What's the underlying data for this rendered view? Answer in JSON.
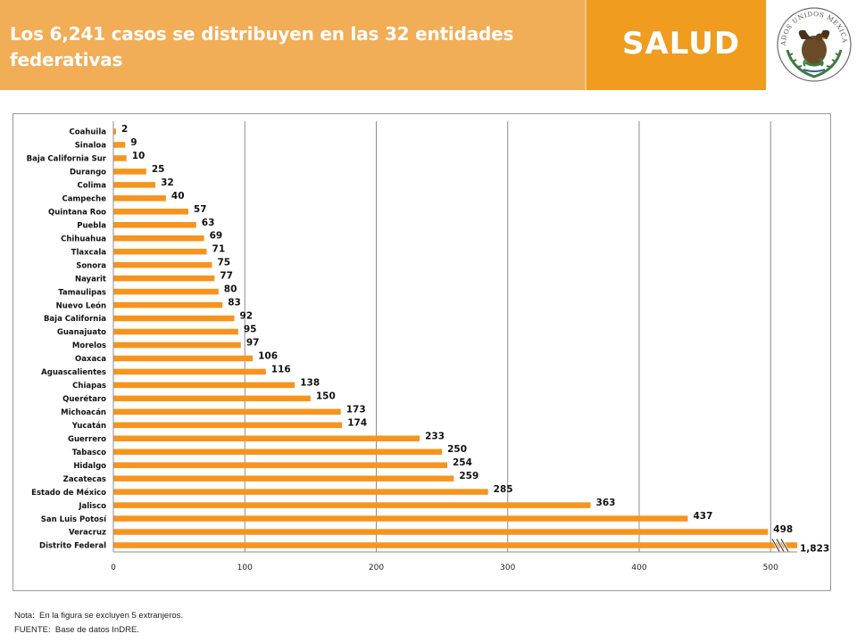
{
  "header": {
    "title": "Los 6,241 casos se distribuyen en las 32 entidades federativas",
    "brand": "SALUD",
    "seal_icon": "mexican-coat-of-arms-seal",
    "seal_text": "ESTADOS UNIDOS MEXICANOS",
    "colors": {
      "title_band": "#f2ad57",
      "brand_band": "#f09c1f"
    }
  },
  "chart_data": {
    "type": "bar",
    "orientation": "horizontal",
    "categories": [
      "Coahuila",
      "Sinaloa",
      "Baja California Sur",
      "Durango",
      "Colima",
      "Campeche",
      "Quintana Roo",
      "Puebla",
      "Chihuahua",
      "Tlaxcala",
      "Sonora",
      "Nayarit",
      "Tamaulipas",
      "Nuevo León",
      "Baja California",
      "Guanajuato",
      "Morelos",
      "Oaxaca",
      "Aguascalientes",
      "Chiapas",
      "Querétaro",
      "Michoacán",
      "Yucatán",
      "Guerrero",
      "Tabasco",
      "Hidalgo",
      "Zacatecas",
      "Estado de México",
      "Jalisco",
      "San Luis Potosí",
      "Veracruz",
      "Distrito Federal"
    ],
    "values": [
      2,
      9,
      10,
      25,
      32,
      40,
      57,
      63,
      69,
      71,
      75,
      77,
      80,
      83,
      92,
      95,
      97,
      106,
      116,
      138,
      150,
      173,
      174,
      233,
      250,
      254,
      259,
      285,
      363,
      437,
      498,
      1823
    ],
    "data_labels": [
      "2",
      "9",
      "10",
      "25",
      "32",
      "40",
      "57",
      "63",
      "69",
      "71",
      "75",
      "77",
      "80",
      "83",
      "92",
      "95",
      "97",
      "106",
      "116",
      "138",
      "150",
      "173",
      "174",
      "233",
      "250",
      "254",
      "259",
      "285",
      "363",
      "437",
      "498",
      "1,823"
    ],
    "truncated_category": "Distrito Federal",
    "xticks": [
      0,
      100,
      200,
      300,
      400,
      500
    ],
    "xlim": [
      0,
      500
    ],
    "grid": "vertical",
    "bar_color": "#f7941d"
  },
  "notes": {
    "line1": "Nota:  En la figura se excluyen 5 extranjeros.",
    "line2": "FUENTE:  Base de datos InDRE."
  }
}
